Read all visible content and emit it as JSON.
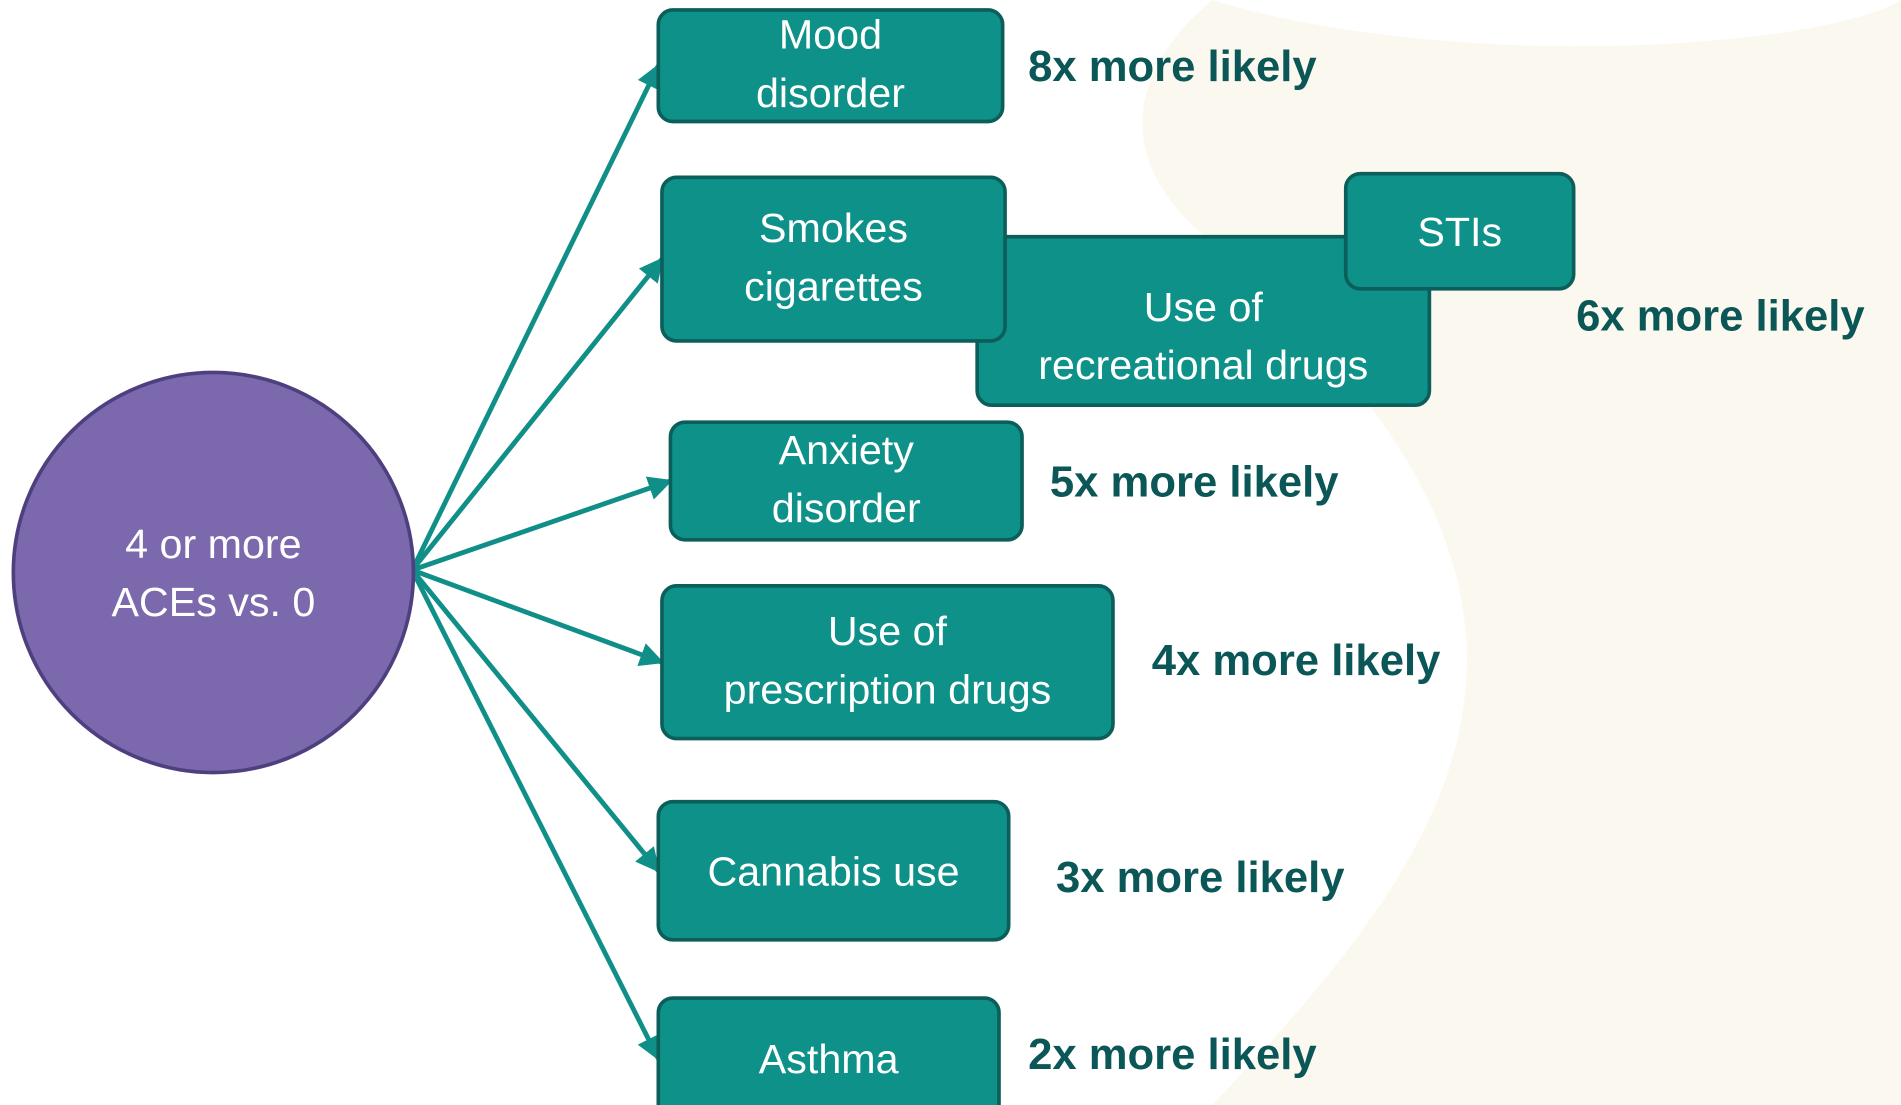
{
  "center": {
    "lines": [
      "4 or more",
      "ACEs vs. 0"
    ]
  },
  "outcomes": [
    {
      "nodes": [
        {
          "lines": [
            "Mood",
            "disorder"
          ]
        }
      ],
      "likelihood": "8x more likely"
    },
    {
      "nodes": [
        {
          "lines": [
            "Smokes",
            "cigarettes"
          ]
        },
        {
          "lines": [
            "Use of",
            "recreational drugs"
          ]
        },
        {
          "lines": [
            "STIs"
          ]
        }
      ],
      "likelihood": "6x more likely"
    },
    {
      "nodes": [
        {
          "lines": [
            "Anxiety",
            "disorder"
          ]
        }
      ],
      "likelihood": "5x more likely"
    },
    {
      "nodes": [
        {
          "lines": [
            "Use of",
            "prescription drugs"
          ]
        }
      ],
      "likelihood": "4x more likely"
    },
    {
      "nodes": [
        {
          "lines": [
            "Cannabis use"
          ]
        }
      ],
      "likelihood": "3x more likely"
    },
    {
      "nodes": [
        {
          "lines": [
            "Asthma"
          ]
        }
      ],
      "likelihood": "2x more likely"
    }
  ]
}
